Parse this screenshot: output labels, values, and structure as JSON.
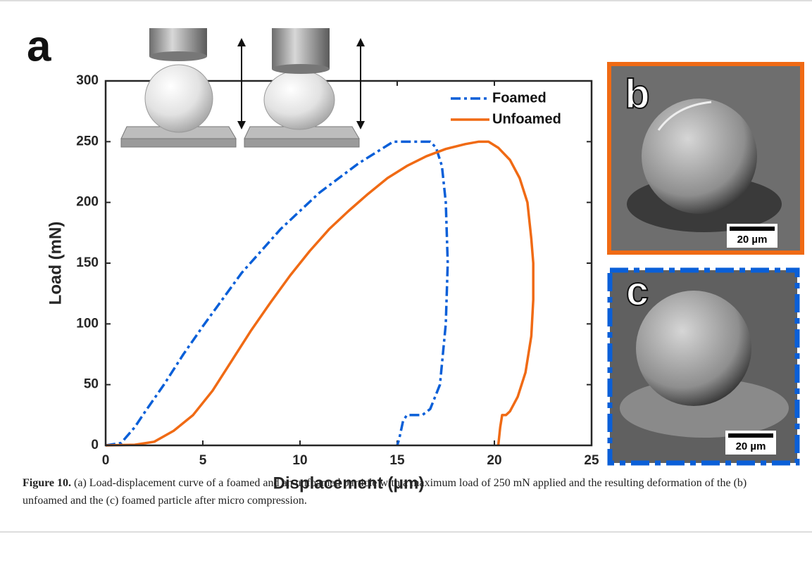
{
  "chart_data": {
    "type": "line",
    "panel_label": "a",
    "xlabel": "Displacement (μm)",
    "ylabel": "Load (mN)",
    "xlim": [
      0,
      25
    ],
    "xticks": [
      0,
      5,
      10,
      15,
      20,
      25
    ],
    "ylim": [
      0,
      300
    ],
    "yticks": [
      0,
      50,
      100,
      150,
      200,
      250,
      300
    ],
    "legend": "upper right",
    "series": [
      {
        "name": "Foamed",
        "color": "#0a5fd8",
        "style": "dashdot",
        "x": [
          0,
          0.8,
          1.5,
          2,
          3,
          4,
          5,
          6,
          7,
          8,
          9,
          10,
          11,
          12,
          13,
          14,
          14.8,
          16.7,
          17,
          17.3,
          17.5,
          17.6,
          17.5,
          17.2,
          16.7,
          16.3,
          15.5,
          15.3,
          15.1,
          15
        ],
        "values": [
          0,
          2,
          15,
          27,
          50,
          75,
          98,
          120,
          142,
          160,
          178,
          193,
          208,
          220,
          232,
          242,
          250,
          250,
          245,
          230,
          200,
          150,
          100,
          50,
          30,
          25,
          25,
          20,
          5,
          0
        ]
      },
      {
        "name": "Unfoamed",
        "color": "#f06a14",
        "style": "solid",
        "x": [
          0,
          1.5,
          2.5,
          3.5,
          4.5,
          5.5,
          6.5,
          7.5,
          8.5,
          9.5,
          10.5,
          11.5,
          12.5,
          13.5,
          14.5,
          15.5,
          16.5,
          17.5,
          18.5,
          19.2,
          19.7,
          20.2,
          20.8,
          21.3,
          21.7,
          21.9,
          22,
          22,
          21.9,
          21.6,
          21.2,
          20.8,
          20.6,
          20.4,
          20.3,
          20.2
        ],
        "values": [
          0,
          0.5,
          3,
          12,
          25,
          45,
          70,
          95,
          118,
          140,
          160,
          178,
          193,
          207,
          220,
          230,
          238,
          244,
          248,
          250,
          250,
          245,
          235,
          220,
          200,
          170,
          150,
          120,
          90,
          60,
          40,
          28,
          25,
          25,
          15,
          0
        ]
      }
    ]
  },
  "images": [
    {
      "label": "b",
      "scale_bar": "20 µm"
    },
    {
      "label": "c",
      "scale_bar": "20 µm"
    }
  ],
  "caption": {
    "label": "Figure 10.",
    "text": "(a) Load-displacement curve of a foamed and an unfoamed particle with a maximum load of 250 mN applied and the resulting deformation of the (b) unfoamed and the (c) foamed particle after micro compression."
  }
}
